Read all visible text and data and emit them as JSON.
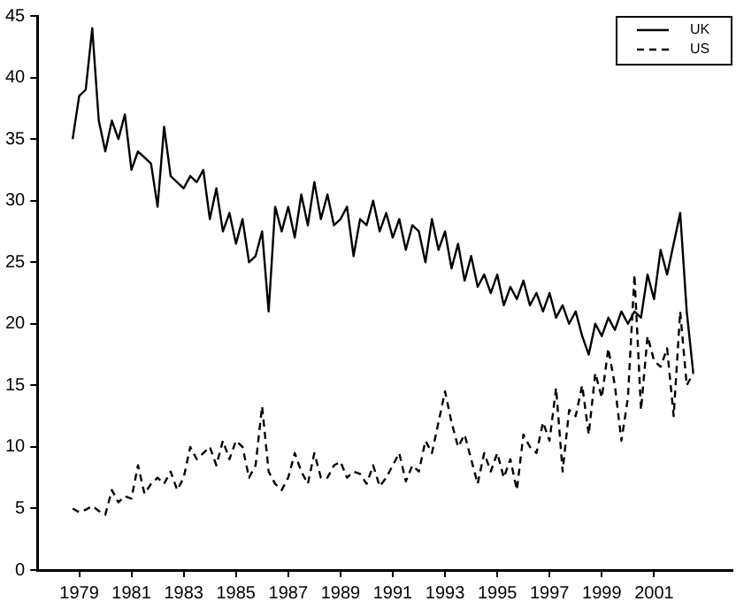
{
  "chart_data": {
    "type": "line",
    "x": [
      1978.75,
      1979,
      1979.25,
      1979.5,
      1979.75,
      1980,
      1980.25,
      1980.5,
      1980.75,
      1981,
      1981.25,
      1981.5,
      1981.75,
      1982,
      1982.25,
      1982.5,
      1982.75,
      1983,
      1983.25,
      1983.5,
      1983.75,
      1984,
      1984.25,
      1984.5,
      1984.75,
      1985,
      1985.25,
      1985.5,
      1985.75,
      1986,
      1986.25,
      1986.5,
      1986.75,
      1987,
      1987.25,
      1987.5,
      1987.75,
      1988,
      1988.25,
      1988.5,
      1988.75,
      1989,
      1989.25,
      1989.5,
      1989.75,
      1990,
      1990.25,
      1990.5,
      1990.75,
      1991,
      1991.25,
      1991.5,
      1991.75,
      1992,
      1992.25,
      1992.5,
      1992.75,
      1993,
      1993.25,
      1993.5,
      1993.75,
      1994,
      1994.25,
      1994.5,
      1994.75,
      1995,
      1995.25,
      1995.5,
      1995.75,
      1996,
      1996.25,
      1996.5,
      1996.75,
      1997,
      1997.25,
      1997.5,
      1997.75,
      1998,
      1998.25,
      1998.5,
      1998.75,
      1999,
      1999.25,
      1999.5,
      1999.75,
      2000,
      2000.25,
      2000.5,
      2000.75,
      2001,
      2001.25,
      2001.5,
      2001.75,
      2002,
      2002.25,
      2002.5
    ],
    "series": [
      {
        "name": "UK",
        "color": "#000000",
        "line_style": "solid",
        "values": [
          35,
          38.5,
          39,
          44,
          36.5,
          34,
          36.5,
          35,
          37,
          32.5,
          34,
          33.5,
          33,
          29.5,
          36,
          32,
          31.5,
          31,
          32,
          31.5,
          32.5,
          28.5,
          31,
          27.5,
          29,
          26.5,
          28.5,
          25,
          25.5,
          27.5,
          21,
          29.5,
          27.5,
          29.5,
          27,
          30.5,
          28,
          31.5,
          28.5,
          30.5,
          28,
          28.5,
          29.5,
          25.5,
          28.5,
          28,
          30,
          27.5,
          29,
          27,
          28.5,
          26,
          28,
          27.5,
          25,
          28.5,
          26,
          27.5,
          24.5,
          26.5,
          23.5,
          25.5,
          23,
          24,
          22.5,
          24,
          21.5,
          23,
          22,
          23.5,
          21.5,
          22.5,
          21,
          22.5,
          20.5,
          21.5,
          20,
          21,
          19,
          17.5,
          20,
          19,
          20.5,
          19.5,
          21,
          20,
          21,
          20.5,
          24,
          22,
          26,
          24,
          26.5,
          29,
          21,
          16
        ]
      },
      {
        "name": "US",
        "color": "#000000",
        "line_style": "dashed",
        "values": [
          5,
          4.7,
          4.9,
          5.2,
          4.8,
          4.5,
          6.5,
          5.5,
          6,
          5.8,
          8.5,
          6.2,
          7,
          7.5,
          7,
          8,
          6.5,
          7.5,
          10,
          9,
          9.5,
          10,
          8.5,
          10.5,
          9,
          10.5,
          10,
          7.5,
          8.5,
          13.3,
          8,
          7,
          6.5,
          7.5,
          9.5,
          8,
          7,
          9.5,
          7.5,
          7.5,
          8.5,
          8.8,
          7.5,
          8,
          7.8,
          7,
          8.5,
          6.8,
          7.5,
          8.5,
          9.5,
          7.2,
          8.5,
          8,
          10.5,
          9.5,
          12,
          14.5,
          12,
          10,
          11,
          9,
          7,
          9.5,
          8,
          9.5,
          7.5,
          9,
          6.5,
          11,
          10,
          9.5,
          12,
          10.5,
          14.8,
          8,
          13,
          12.5,
          15,
          11,
          16,
          14,
          18,
          15,
          10.5,
          14,
          24,
          13,
          19,
          17,
          16.5,
          18,
          12.5,
          21,
          15,
          16
        ]
      }
    ],
    "xlim": [
      1977.4,
      2004
    ],
    "xticks": [
      1979,
      1981,
      1983,
      1985,
      1987,
      1989,
      1991,
      1993,
      1995,
      1997,
      1999,
      2001
    ],
    "ylim": [
      0,
      45
    ],
    "yticks": [
      0,
      5,
      10,
      15,
      20,
      25,
      30,
      35,
      40,
      45
    ],
    "grid": false,
    "legend": "top right",
    "marker": "none"
  }
}
